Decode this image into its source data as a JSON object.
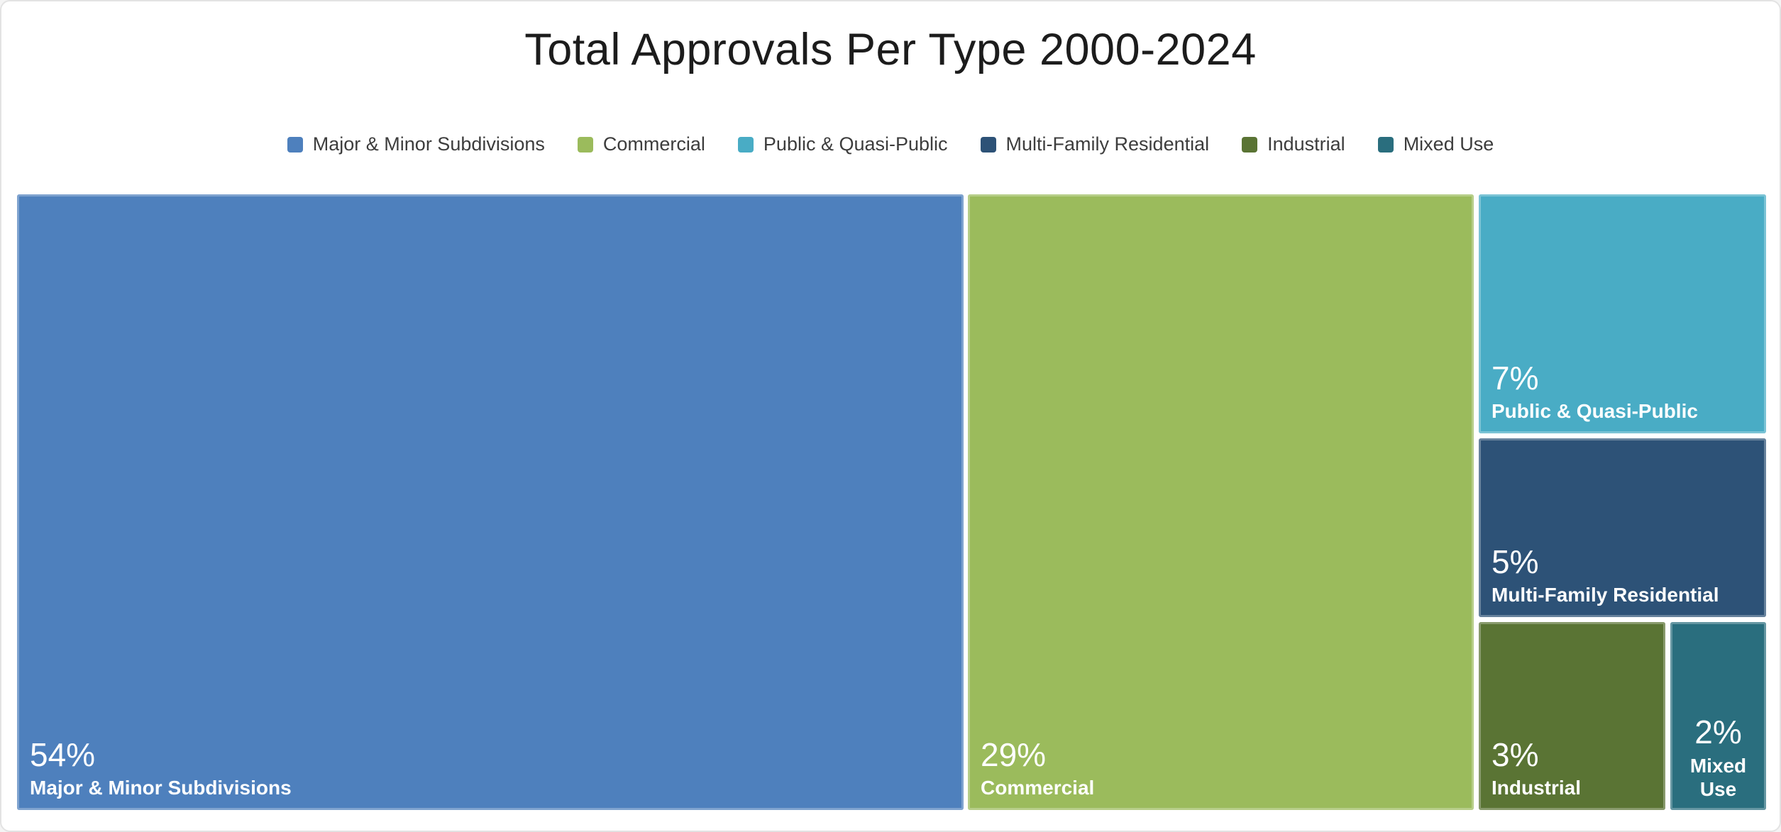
{
  "card": {
    "title": "Total Approvals Per Type 2000-2024"
  },
  "legend": {
    "items": [
      {
        "label": "Major & Minor Subdivisions",
        "color": "#4E80BD"
      },
      {
        "label": "Commercial",
        "color": "#9BBB5C"
      },
      {
        "label": "Public & Quasi-Public",
        "color": "#49ACC5"
      },
      {
        "label": "Multi-Family Residential",
        "color": "#2D5277"
      },
      {
        "label": "Industrial",
        "color": "#5A7434"
      },
      {
        "label": "Mixed Use",
        "color": "#2A6E7E"
      }
    ]
  },
  "tiles": [
    {
      "pct": "54%",
      "label": "Major & Minor Subdivisions",
      "color": "#4E80BD"
    },
    {
      "pct": "29%",
      "label": "Commercial",
      "color": "#9BBB5C"
    },
    {
      "pct": "7%",
      "label": "Public & Quasi-Public",
      "color": "#49ACC5"
    },
    {
      "pct": "5%",
      "label": "Multi-Family Residential",
      "color": "#2D5277"
    },
    {
      "pct": "3%",
      "label": "Industrial",
      "color": "#5A7434"
    },
    {
      "pct": "2%",
      "label": "Mixed Use",
      "color": "#2A6E7E"
    }
  ],
  "chart_data": {
    "type": "treemap",
    "title": "Total Approvals Per Type 2000-2024",
    "categories": [
      "Major & Minor Subdivisions",
      "Commercial",
      "Public & Quasi-Public",
      "Multi-Family Residential",
      "Industrial",
      "Mixed Use"
    ],
    "values": [
      54,
      29,
      7,
      5,
      3,
      2
    ],
    "unit": "percent",
    "colors": [
      "#4E80BD",
      "#9BBB5C",
      "#49ACC5",
      "#2D5277",
      "#5A7434",
      "#2A6E7E"
    ],
    "legend_position": "top",
    "label_format": "{value}% {category}",
    "label_color": "#FFFFFF"
  }
}
